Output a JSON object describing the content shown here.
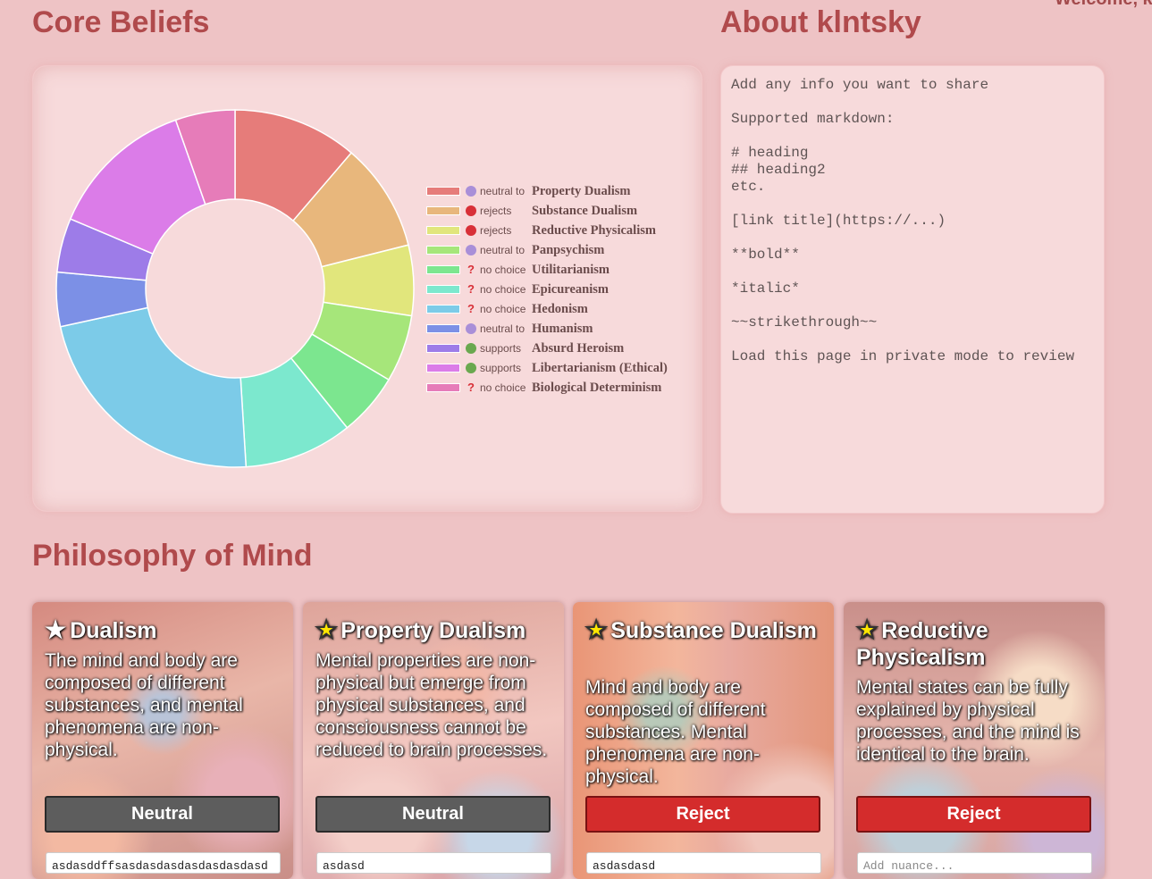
{
  "header": {
    "welcome_text": "Welcome, k"
  },
  "core_beliefs": {
    "title": "Core Beliefs"
  },
  "about": {
    "title": "About klntsky",
    "text": "Add any info you want to share\n\nSupported markdown:\n\n# heading\n## heading2\netc.\n\n[link title](https://...)\n\n**bold**\n\n*italic*\n\n~~strikethrough~~\n\nLoad this page in private mode to review"
  },
  "chart_data": {
    "type": "pie",
    "subtype": "doughnut",
    "values": [
      11.5,
      10.0,
      6.5,
      6.2,
      5.8,
      10.0,
      23.0,
      5.0,
      5.0,
      13.5,
      5.5
    ],
    "labels": [
      "Property Dualism",
      "Substance Dualism",
      "Reductive Physicalism",
      "Panpsychism",
      "Utilitarianism",
      "Epicureanism",
      "Hedonism",
      "Humanism",
      "Absurd Heroism",
      "Libertarianism (Ethical)",
      "Biological Determinism"
    ],
    "colors": [
      "#e67c7a",
      "#e8b77c",
      "#e1e67c",
      "#a6e67a",
      "#7ce68f",
      "#7ce8ce",
      "#7ccbe8",
      "#7c90e6",
      "#9d7ce8",
      "#db7ce8",
      "#e67cb9"
    ],
    "legend_position": "right"
  },
  "legend": [
    {
      "stance": "neutral to",
      "icon": "neutral",
      "topic": "Property Dualism"
    },
    {
      "stance": "rejects",
      "icon": "reject",
      "topic": "Substance Dualism"
    },
    {
      "stance": "rejects",
      "icon": "reject",
      "topic": "Reductive Physicalism"
    },
    {
      "stance": "neutral to",
      "icon": "neutral",
      "topic": "Panpsychism"
    },
    {
      "stance": "no choice",
      "icon": "none",
      "topic": "Utilitarianism"
    },
    {
      "stance": "no choice",
      "icon": "none",
      "topic": "Epicureanism"
    },
    {
      "stance": "no choice",
      "icon": "none",
      "topic": "Hedonism"
    },
    {
      "stance": "neutral to",
      "icon": "neutral",
      "topic": "Humanism"
    },
    {
      "stance": "supports",
      "icon": "support",
      "topic": "Absurd Heroism"
    },
    {
      "stance": "supports",
      "icon": "support",
      "topic": "Libertarianism (Ethical)"
    },
    {
      "stance": "no choice",
      "icon": "none",
      "topic": "Biological Determinism"
    }
  ],
  "stance_colors": {
    "neutral": "#a98fd8",
    "reject": "#d83038",
    "support": "#6aa84f",
    "none": "#d83038"
  },
  "mind": {
    "title": "Philosophy of Mind",
    "cards": [
      {
        "title": "Dualism",
        "starred": false,
        "description": "The mind and body are composed of different substances, and mental phenomena are non-physical.",
        "button": "Neutral",
        "button_style": "neutral",
        "nuance_value": "asdasddffsasdasdasdasdasdasdasd",
        "nuance_placeholder": "Add nuance..."
      },
      {
        "title": "Property Dualism",
        "starred": true,
        "description": "Mental properties are non-physical but emerge from physical substances, and consciousness cannot be reduced to brain processes.",
        "button": "Neutral",
        "button_style": "neutral",
        "nuance_value": "asdasd",
        "nuance_placeholder": "Add nuance..."
      },
      {
        "title": "Substance Dualism",
        "starred": true,
        "description": "Mind and body are composed of different substances. Mental phenomena are non-physical.",
        "button": "Reject",
        "button_style": "reject",
        "nuance_value": "asdasdasd",
        "nuance_placeholder": "Add nuance..."
      },
      {
        "title": "Reductive Physicalism",
        "starred": true,
        "description": "Mental states can be fully explained by physical processes, and the mind is identical to the brain.",
        "button": "Reject",
        "button_style": "reject",
        "nuance_value": "",
        "nuance_placeholder": "Add nuance..."
      }
    ]
  }
}
